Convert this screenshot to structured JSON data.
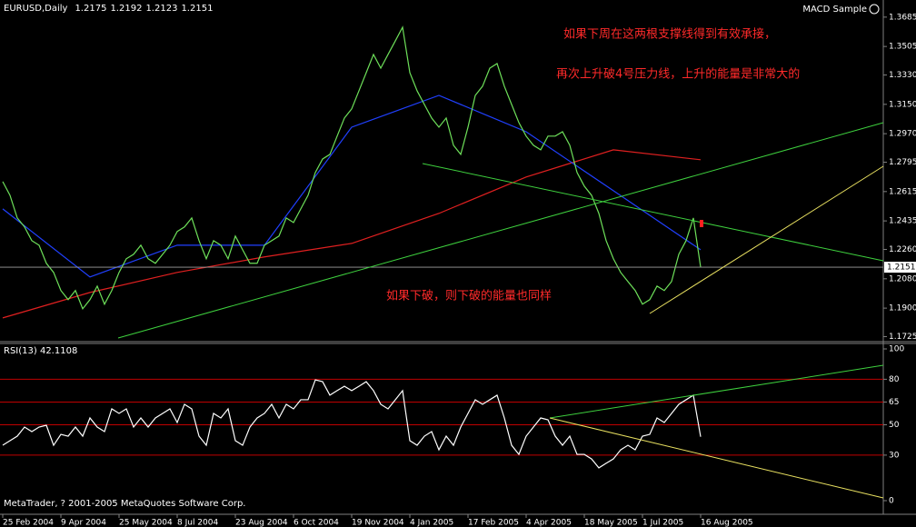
{
  "header": {
    "symbol": "EURUSD,Daily",
    "ohlc": [
      1.2175,
      1.2192,
      1.2123,
      1.2151
    ],
    "expert": "MACD Sample"
  },
  "annotations": [
    "如果下周在这两根支撑线得到有效承接，",
    "再次上升破4号压力线，上升的能量是非常大的",
    "如果下破，则下破的能量也同样"
  ],
  "copyright": "MetaTrader, ? 2001-2005 MetaQuotes Software Corp.",
  "chart_data": [
    {
      "type": "line",
      "categories": [
        "25 Feb 2004",
        null,
        null,
        null,
        null,
        null,
        null,
        null,
        "9 Apr 2004",
        null,
        null,
        null,
        null,
        null,
        null,
        null,
        "25 May 2004",
        null,
        null,
        null,
        null,
        null,
        null,
        null,
        "8 Jul 2004",
        null,
        null,
        null,
        null,
        null,
        null,
        null,
        "23 Aug 2004",
        null,
        null,
        null,
        null,
        null,
        null,
        null,
        "6 Oct 2004",
        null,
        null,
        null,
        null,
        null,
        null,
        null,
        "19 Nov 2004",
        null,
        null,
        null,
        null,
        null,
        null,
        null,
        "4 Jan 2005",
        null,
        null,
        null,
        null,
        null,
        null,
        null,
        "17 Feb 2005",
        null,
        null,
        null,
        null,
        null,
        null,
        null,
        "4 Apr 2005",
        null,
        null,
        null,
        null,
        null,
        null,
        null,
        "18 May 2005",
        null,
        null,
        null,
        null,
        null,
        null,
        null,
        "1 Jul 2005",
        null,
        null,
        null,
        null,
        null,
        null,
        null,
        "16 Aug 2005"
      ],
      "series": [
        {
          "color": "#6ee05a",
          "values": [
            1.2676,
            1.2592,
            1.2453,
            1.2398,
            1.2314,
            1.2286,
            1.2175,
            1.2119,
            1.2008,
            1.1952,
            1.2008,
            1.1896,
            1.1952,
            1.2035,
            1.1924,
            1.2008,
            1.2119,
            1.2203,
            1.223,
            1.2286,
            1.2203,
            1.2175,
            1.223,
            1.2286,
            1.237,
            1.2398,
            1.2453,
            1.2314,
            1.2203,
            1.2314,
            1.2286,
            1.2203,
            1.2342,
            1.2258,
            1.2175,
            1.2175,
            1.2286,
            1.2314,
            1.2342,
            1.2453,
            1.2425,
            1.2509,
            1.2592,
            1.2732,
            1.2815,
            1.2843,
            1.2955,
            1.3066,
            1.3122,
            1.3233,
            1.3344,
            1.3456,
            1.3372,
            1.3456,
            1.3539,
            1.3623,
            1.3344,
            1.3233,
            1.3149,
            1.3066,
            1.301,
            1.3066,
            1.2899,
            1.2843,
            1.301,
            1.3205,
            1.3261,
            1.3372,
            1.34,
            1.3261,
            1.3149,
            1.3038,
            1.2955,
            1.2899,
            1.2871,
            1.2955,
            1.2955,
            1.2982,
            1.2899,
            1.2732,
            1.2648,
            1.2592,
            1.2481,
            1.2314,
            1.2203,
            1.2119,
            1.2063,
            1.2008,
            1.1924,
            1.1952,
            1.2035,
            1.2008,
            1.2063,
            1.223,
            1.2314,
            1.2453,
            1.2151
          ]
        }
      ],
      "indicators": [
        {
          "color": "#e02020",
          "x": [
            0,
            12,
            24,
            36,
            48,
            60,
            72,
            84,
            96
          ],
          "values": [
            1.184,
            1.1996,
            1.2119,
            1.2214,
            1.2297,
            1.2481,
            1.2704,
            1.2871,
            1.281
          ]
        },
        {
          "color": "#2040ff",
          "x": [
            0,
            12,
            24,
            36,
            48,
            60,
            72,
            84,
            96
          ],
          "values": [
            1.2509,
            1.2091,
            1.2286,
            1.2286,
            1.301,
            1.3205,
            1.2982,
            1.262,
            1.2258
          ]
        }
      ],
      "ylim": [
        1.17,
        1.379
      ],
      "yticks": [
        1.3685,
        1.3505,
        {
          "value": 1.333,
          "label": "1.3330"
        },
        {
          "value": 1.315,
          "label": "1.3150"
        },
        {
          "value": 1.297,
          "label": "1.2970"
        },
        1.2795,
        1.2615,
        1.2435,
        {
          "value": 1.226,
          "label": "1.2260"
        },
        {
          "value": 1.208,
          "label": "1.2080"
        },
        {
          "value": 1.19,
          "label": "1.1900"
        },
        1.1725
      ],
      "last_price": 1.2151
    },
    {
      "type": "line",
      "title": "RSI(13) 42.1108",
      "color": "#ffffff",
      "values": [
        36.5,
        39.5,
        42.5,
        48.5,
        45.5,
        48.5,
        49.7,
        36.5,
        43.7,
        42.5,
        48.5,
        42.5,
        54.5,
        48.5,
        45.5,
        60.5,
        57.5,
        60.5,
        48.5,
        54.5,
        48.5,
        54.5,
        57.5,
        60.5,
        51.5,
        63.5,
        60.5,
        42.5,
        36.5,
        57.5,
        54.5,
        60.5,
        39.5,
        36.5,
        48.5,
        54.5,
        57.5,
        63.5,
        54.5,
        63.5,
        60.5,
        66.5,
        66.5,
        79.6,
        78.4,
        69.5,
        72.5,
        75.4,
        72.5,
        75.4,
        78.4,
        72.5,
        63.5,
        60.5,
        66.5,
        72.5,
        39.5,
        36.5,
        42.5,
        45.5,
        33.5,
        42.5,
        36.5,
        48.5,
        57.5,
        66.5,
        63.5,
        66.5,
        69.5,
        54.5,
        36.5,
        30.5,
        42.5,
        48.5,
        54.5,
        53.3,
        42.5,
        36.5,
        42.5,
        30.5,
        30.5,
        27.5,
        21.6,
        24.6,
        27.5,
        33.5,
        36.5,
        33.5,
        42.5,
        43.7,
        54.5,
        51.5,
        57.5,
        63.5,
        66.5,
        69.5,
        42.1108
      ],
      "ylim": [
        0,
        100
      ],
      "yticks": [
        0,
        30,
        50,
        65,
        80,
        100
      ],
      "levels": [
        30,
        50,
        65,
        80
      ],
      "level_color": "#c00000"
    }
  ]
}
